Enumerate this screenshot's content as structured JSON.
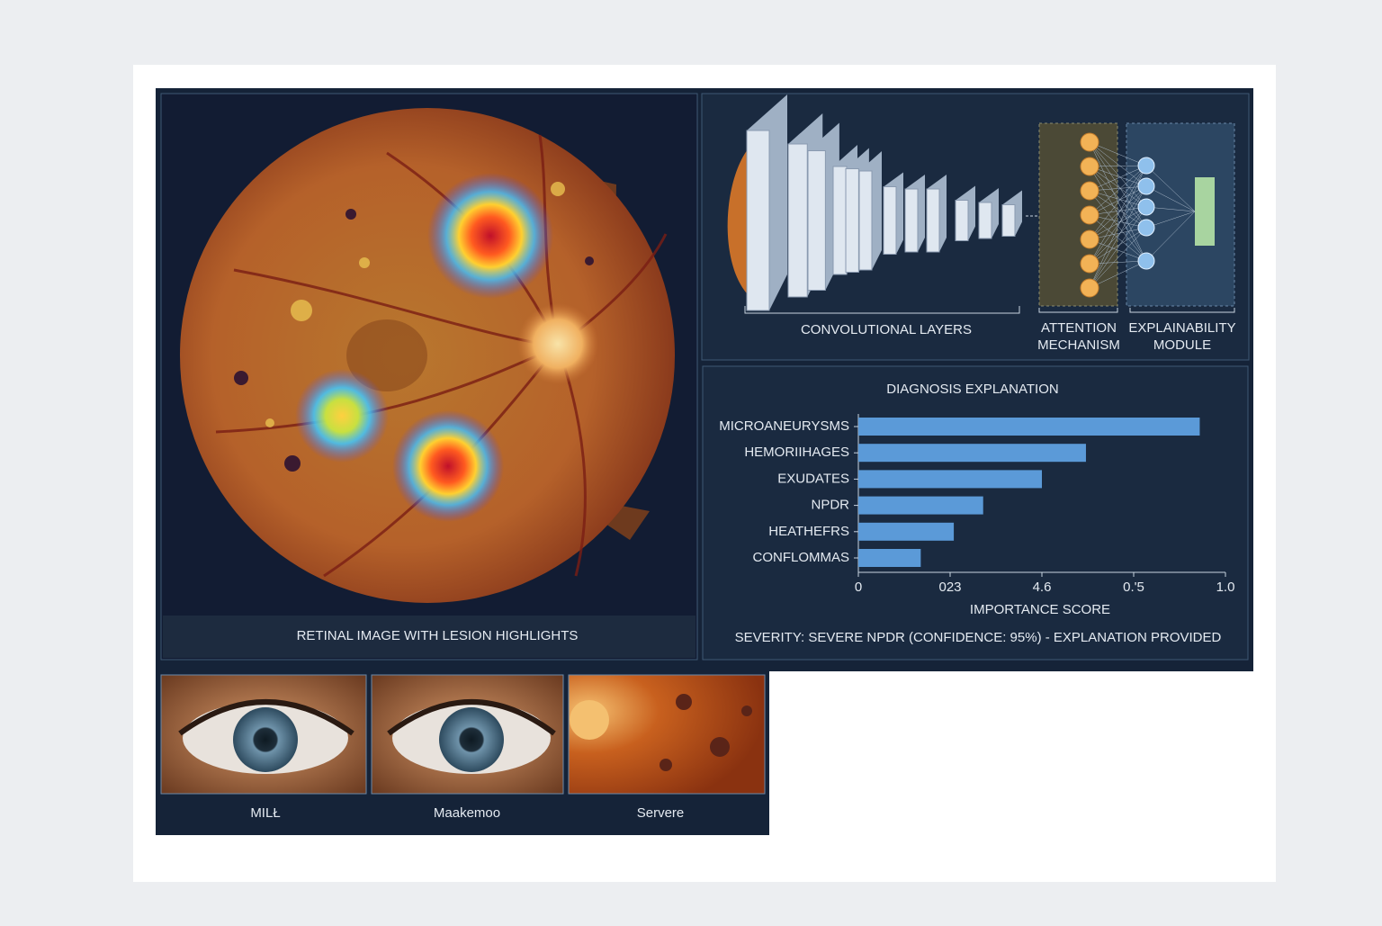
{
  "retinal_panel": {
    "caption": "RETINAL IMAGE WITH LESION HIGHLIGHTS"
  },
  "architecture": {
    "conv_label": "CONVOLUTIONAL LAYERS",
    "attention_label": [
      "ATTENTION",
      "MECHANISM"
    ],
    "explainability_label": [
      "EXPLAINABILITY",
      "MODULE"
    ]
  },
  "chart_data": {
    "type": "barh",
    "title": "DIAGNOSIS EXPLANATION",
    "categories": [
      "MICROANEURYSMS",
      "HEMORIIHAGES",
      "EXUDATES",
      "NPDR",
      "HEATHEFRS",
      "CONFLOMMAS"
    ],
    "values": [
      0.93,
      0.62,
      0.5,
      0.34,
      0.26,
      0.17
    ],
    "color": "#5b9ad8",
    "xlim": [
      0,
      1
    ],
    "xticks": [
      0,
      {
        "value": 0.25,
        "label": "023"
      },
      {
        "value": 0.5,
        "label": "4.6"
      },
      {
        "value": 0.75,
        "label": "0.'5"
      },
      {
        "value": 1,
        "label": "1.0"
      }
    ],
    "xlabel": "IMPORTANCE SCORE",
    "grid": false
  },
  "severity_text": "SEVERITY: SEVERE NPDR (CONFIDENCE: 95%) - EXPLANATION PROVIDED",
  "thumbnails": [
    {
      "label": "MILŁ"
    },
    {
      "label": "Maakemoo"
    },
    {
      "label": "Servere"
    }
  ]
}
